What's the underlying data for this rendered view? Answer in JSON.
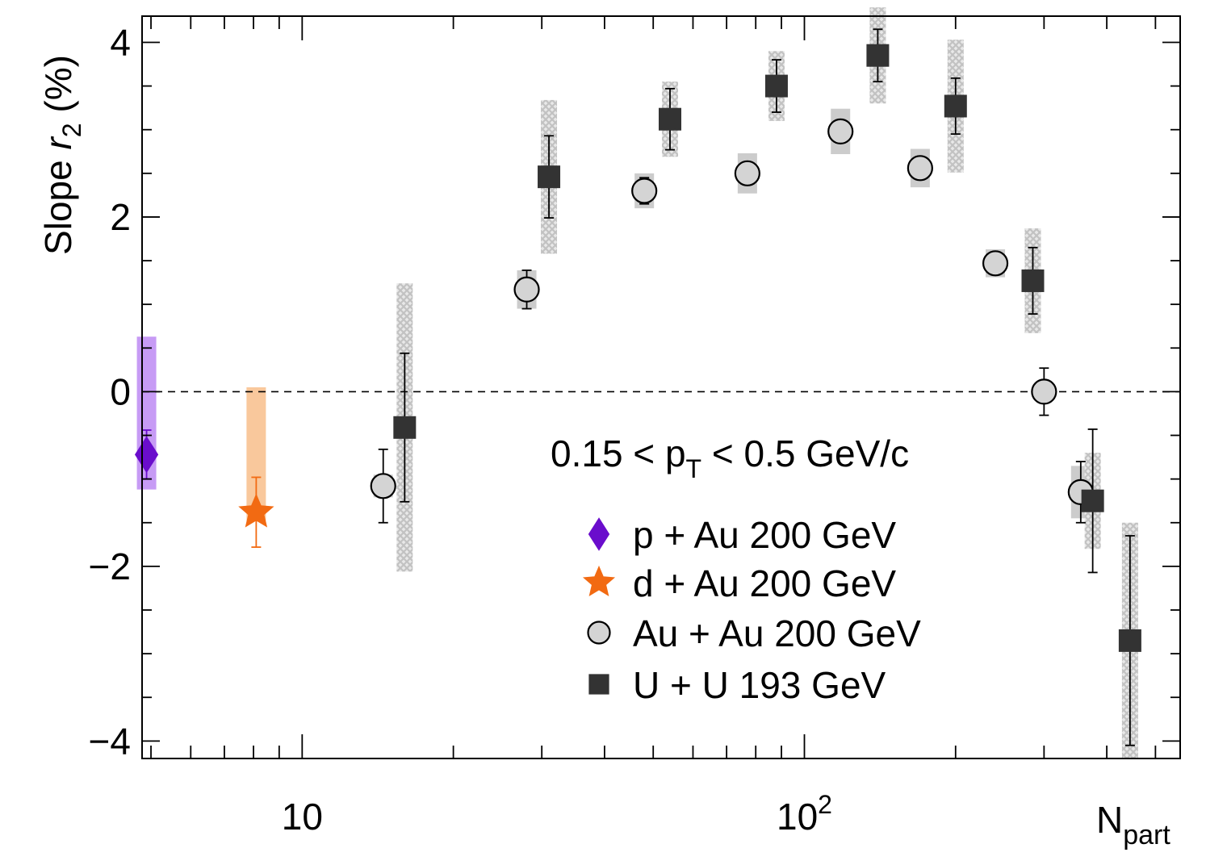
{
  "chart_data": {
    "type": "scatter",
    "xlabel": "N",
    "xlabel_sub": "part",
    "ylabel_prefix": "Slope ",
    "ylabel_var": "r",
    "ylabel_sub": "2",
    "ylabel_suffix": " (%)",
    "x_scale": "log",
    "xlim": [
      4.8,
      560
    ],
    "ylim": [
      -4.2,
      4.3
    ],
    "x_tick_labels": [
      {
        "value": 10,
        "base": "10",
        "exp": ""
      },
      {
        "value": 100,
        "base": "10",
        "exp": "2"
      }
    ],
    "y_tick_labels": [
      {
        "value": -4,
        "label": "−4"
      },
      {
        "value": -2,
        "label": "−2"
      },
      {
        "value": 0,
        "label": "0"
      },
      {
        "value": 2,
        "label": "2"
      },
      {
        "value": 4,
        "label": "4"
      }
    ],
    "reference_line": {
      "y": 0,
      "style": "dashed"
    },
    "annotation": {
      "text_before": "0.15 < p",
      "sub": "T",
      "text_after": " < 0.5 GeV/c"
    },
    "legend_position": "right-center",
    "colors": {
      "pAu": "#6a0dcc",
      "pAu_sys": "#c79bf5",
      "dAu": "#f26a12",
      "dAu_sys": "#f9c89c",
      "AuAu_fill": "#d4d4d4",
      "AuAu_sys": "#cccccc",
      "UU": "#333333",
      "UU_sys": "#cfcfcf"
    },
    "series": [
      {
        "name": "p + Au 200 GeV",
        "marker": "diamond",
        "points": [
          {
            "x": 4.9,
            "y": -0.72,
            "stat": 0.28,
            "sys_lo": -1.12,
            "sys_hi": 0.63
          }
        ]
      },
      {
        "name": "d + Au 200 GeV",
        "marker": "star",
        "points": [
          {
            "x": 8.1,
            "y": -1.38,
            "stat": 0.4,
            "sys_lo": -1.48,
            "sys_hi": 0.05
          }
        ]
      },
      {
        "name": "Au + Au 200 GeV",
        "marker": "circle",
        "points": [
          {
            "x": 14.5,
            "y": -1.08,
            "stat": 0.42,
            "sys": 0.13
          },
          {
            "x": 28,
            "y": 1.17,
            "stat": 0.22,
            "sys": 0.22
          },
          {
            "x": 48,
            "y": 2.3,
            "stat": 0.15,
            "sys": 0.2
          },
          {
            "x": 77,
            "y": 2.5,
            "stat": 0.1,
            "sys": 0.23
          },
          {
            "x": 118,
            "y": 2.98,
            "stat": 0.1,
            "sys": 0.26
          },
          {
            "x": 170,
            "y": 2.56,
            "stat": 0.1,
            "sys": 0.22
          },
          {
            "x": 240,
            "y": 1.47,
            "stat": 0.1,
            "sys": 0.16
          },
          {
            "x": 300,
            "y": 0.0,
            "stat": 0.27,
            "sys": 0.05
          },
          {
            "x": 355,
            "y": -1.15,
            "stat": 0.35,
            "sys": 0.3
          }
        ]
      },
      {
        "name": "U + U 193 GeV",
        "marker": "square",
        "points": [
          {
            "x": 16,
            "y": -0.41,
            "stat": 0.85,
            "sys": 1.65
          },
          {
            "x": 31,
            "y": 2.46,
            "stat": 0.47,
            "sys": 0.88
          },
          {
            "x": 54,
            "y": 3.12,
            "stat": 0.35,
            "sys": 0.43
          },
          {
            "x": 88,
            "y": 3.5,
            "stat": 0.3,
            "sys": 0.4
          },
          {
            "x": 140,
            "y": 3.85,
            "stat": 0.3,
            "sys": 0.55
          },
          {
            "x": 200,
            "y": 3.27,
            "stat": 0.32,
            "sys": 0.76
          },
          {
            "x": 285,
            "y": 1.27,
            "stat": 0.38,
            "sys": 0.6
          },
          {
            "x": 375,
            "y": -1.25,
            "stat": 0.82,
            "sys": 0.55
          },
          {
            "x": 445,
            "y": -2.85,
            "stat": 1.2,
            "sys": 1.35
          }
        ]
      }
    ]
  }
}
